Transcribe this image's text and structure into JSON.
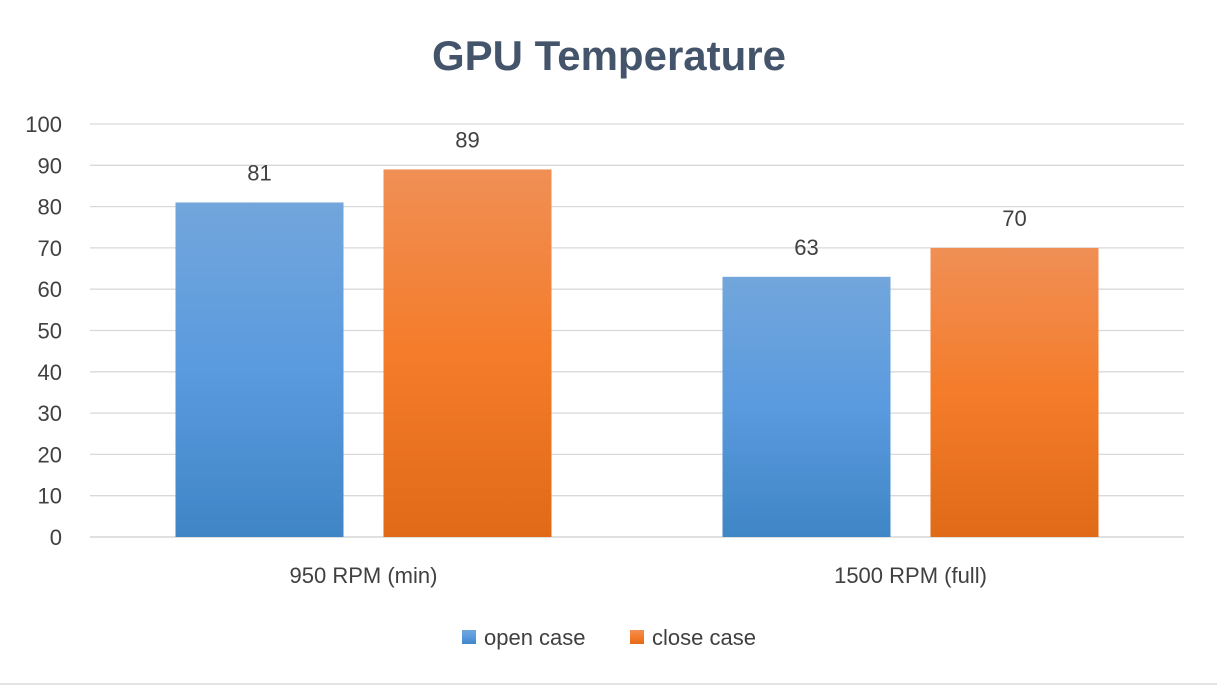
{
  "chart_data": {
    "type": "bar",
    "title": "GPU Temperature",
    "categories": [
      "950 RPM (min)",
      "1500 RPM (full)"
    ],
    "series": [
      {
        "name": "open case",
        "values": [
          81,
          63
        ],
        "color": "#5b9bd5"
      },
      {
        "name": "close case",
        "values": [
          89,
          70
        ],
        "color": "#ed7d31"
      }
    ],
    "ylim": [
      0,
      100
    ],
    "yticks": [
      0,
      10,
      20,
      30,
      40,
      50,
      60,
      70,
      80,
      90,
      100
    ],
    "grid": true,
    "legend_position": "bottom",
    "data_labels": true
  }
}
